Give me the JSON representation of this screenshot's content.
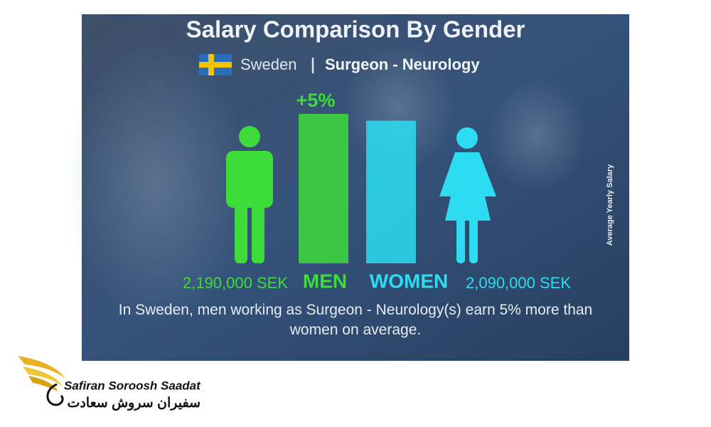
{
  "chart_data": {
    "type": "bar",
    "title": "Salary Comparison By Gender",
    "country": "Sweden",
    "job": "Surgeon - Neurology",
    "difference": "+5%",
    "categories": [
      "MEN",
      "WOMEN"
    ],
    "values": [
      2190000,
      2090000
    ],
    "value_labels": [
      "2,190,000 SEK",
      "2,090,000 SEK"
    ],
    "colors": [
      "#3ddc3a",
      "#2edcf2"
    ],
    "y_label": "Average Yearly Salary",
    "description": "In Sweden, men working as Surgeon - Neurology(s) earn 5% more than women on average."
  },
  "logo": {
    "name": "Safiran Soroosh Saadat",
    "name_fa": "سفیران سروش سعادت"
  }
}
